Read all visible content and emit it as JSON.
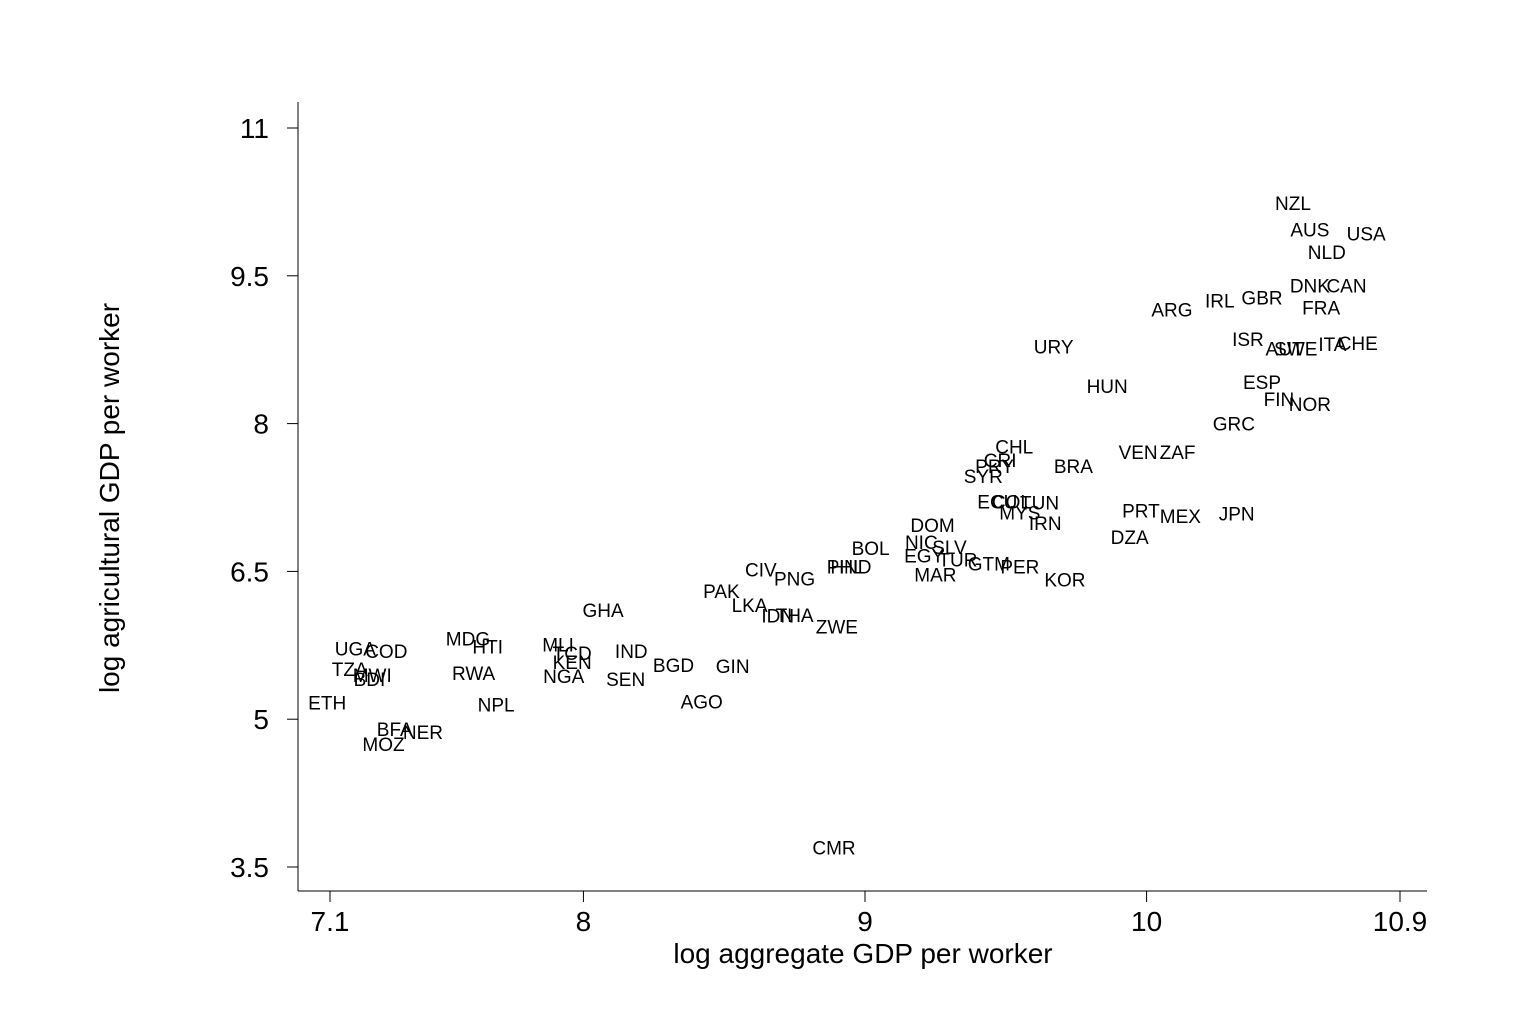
{
  "chart_data": {
    "type": "scatter",
    "title": "",
    "xlabel": "log aggregate GDP per worker",
    "ylabel": "log agricultural GDP per worker",
    "xlim": [
      6.99,
      11.09
    ],
    "ylim": [
      3.25,
      11.25
    ],
    "xticks": [
      7.1,
      8,
      9,
      10,
      10.9
    ],
    "xtick_labels": [
      "7.1",
      "8",
      "9",
      "10",
      "10.9"
    ],
    "yticks": [
      3.5,
      5,
      6.5,
      8,
      9.5,
      11
    ],
    "ytick_labels": [
      "3.5",
      "5",
      "6.5",
      "8",
      "9.5",
      "11"
    ],
    "grid": false,
    "points": [
      {
        "label": "NZL",
        "x": 10.52,
        "y": 10.24
      },
      {
        "label": "AUS",
        "x": 10.58,
        "y": 9.97
      },
      {
        "label": "USA",
        "x": 10.78,
        "y": 9.93
      },
      {
        "label": "NLD",
        "x": 10.64,
        "y": 9.74
      },
      {
        "label": "DNK",
        "x": 10.58,
        "y": 9.4
      },
      {
        "label": "CAN",
        "x": 10.71,
        "y": 9.4
      },
      {
        "label": "GBR",
        "x": 10.41,
        "y": 9.28
      },
      {
        "label": "IRL",
        "x": 10.26,
        "y": 9.25
      },
      {
        "label": "FRA",
        "x": 10.62,
        "y": 9.18
      },
      {
        "label": "ARG",
        "x": 10.09,
        "y": 9.16
      },
      {
        "label": "ISR",
        "x": 10.36,
        "y": 8.86
      },
      {
        "label": "AUT",
        "x": 10.49,
        "y": 8.76
      },
      {
        "label": "SWE",
        "x": 10.53,
        "y": 8.76
      },
      {
        "label": "ITA",
        "x": 10.66,
        "y": 8.81
      },
      {
        "label": "CHE",
        "x": 10.75,
        "y": 8.82
      },
      {
        "label": "URY",
        "x": 9.67,
        "y": 8.78
      },
      {
        "label": "HUN",
        "x": 9.86,
        "y": 8.38
      },
      {
        "label": "ESP",
        "x": 10.41,
        "y": 8.42
      },
      {
        "label": "FIN",
        "x": 10.47,
        "y": 8.25
      },
      {
        "label": "NOR",
        "x": 10.58,
        "y": 8.2
      },
      {
        "label": "GRC",
        "x": 10.31,
        "y": 8
      },
      {
        "label": "CHL",
        "x": 9.53,
        "y": 7.77
      },
      {
        "label": "VEN",
        "x": 9.97,
        "y": 7.71
      },
      {
        "label": "ZAF",
        "x": 10.11,
        "y": 7.71
      },
      {
        "label": "CRI",
        "x": 9.48,
        "y": 7.63
      },
      {
        "label": "PRY",
        "x": 9.46,
        "y": 7.57
      },
      {
        "label": "BRA",
        "x": 9.74,
        "y": 7.57
      },
      {
        "label": "SYR",
        "x": 9.42,
        "y": 7.47
      },
      {
        "label": "ECU",
        "x": 9.47,
        "y": 7.21
      },
      {
        "label": "COL",
        "x": 9.52,
        "y": 7.21
      },
      {
        "label": "TUN",
        "x": 9.62,
        "y": 7.2
      },
      {
        "label": "MYS",
        "x": 9.55,
        "y": 7.1
      },
      {
        "label": "IRN",
        "x": 9.64,
        "y": 6.99
      },
      {
        "label": "PRT",
        "x": 9.98,
        "y": 7.12
      },
      {
        "label": "MEX",
        "x": 10.12,
        "y": 7.06
      },
      {
        "label": "JPN",
        "x": 10.32,
        "y": 7.09
      },
      {
        "label": "DOM",
        "x": 9.24,
        "y": 6.97
      },
      {
        "label": "DZA",
        "x": 9.94,
        "y": 6.85
      },
      {
        "label": "NIC",
        "x": 9.2,
        "y": 6.8
      },
      {
        "label": "SLV",
        "x": 9.3,
        "y": 6.75
      },
      {
        "label": "BOL",
        "x": 9.02,
        "y": 6.74
      },
      {
        "label": "EGY",
        "x": 9.21,
        "y": 6.66
      },
      {
        "label": "TUR",
        "x": 9.33,
        "y": 6.62
      },
      {
        "label": "GTM",
        "x": 9.44,
        "y": 6.58
      },
      {
        "label": "PER",
        "x": 9.55,
        "y": 6.55
      },
      {
        "label": "HND",
        "x": 8.95,
        "y": 6.55
      },
      {
        "label": "PHL",
        "x": 8.93,
        "y": 6.55
      },
      {
        "label": "MAR",
        "x": 9.25,
        "y": 6.47
      },
      {
        "label": "KOR",
        "x": 9.71,
        "y": 6.42
      },
      {
        "label": "CIV",
        "x": 8.63,
        "y": 6.52
      },
      {
        "label": "PNG",
        "x": 8.75,
        "y": 6.43
      },
      {
        "label": "PAK",
        "x": 8.49,
        "y": 6.3
      },
      {
        "label": "LKA",
        "x": 8.59,
        "y": 6.16
      },
      {
        "label": "GHA",
        "x": 8.07,
        "y": 6.11
      },
      {
        "label": "IDN",
        "x": 8.69,
        "y": 6.05
      },
      {
        "label": "THA",
        "x": 8.75,
        "y": 6.06
      },
      {
        "label": "ZWE",
        "x": 8.9,
        "y": 5.94
      },
      {
        "label": "MDG",
        "x": 7.59,
        "y": 5.82
      },
      {
        "label": "HTI",
        "x": 7.66,
        "y": 5.74
      },
      {
        "label": "MLI",
        "x": 7.91,
        "y": 5.76
      },
      {
        "label": "TCD",
        "x": 7.96,
        "y": 5.67
      },
      {
        "label": "KEN",
        "x": 7.96,
        "y": 5.58
      },
      {
        "label": "IND",
        "x": 8.17,
        "y": 5.69
      },
      {
        "label": "UGA",
        "x": 7.19,
        "y": 5.72
      },
      {
        "label": "COD",
        "x": 7.3,
        "y": 5.69
      },
      {
        "label": "BGD",
        "x": 8.32,
        "y": 5.55
      },
      {
        "label": "GIN",
        "x": 8.53,
        "y": 5.54
      },
      {
        "label": "TZA",
        "x": 7.17,
        "y": 5.51
      },
      {
        "label": "MWI",
        "x": 7.25,
        "y": 5.45
      },
      {
        "label": "BDI",
        "x": 7.24,
        "y": 5.41
      },
      {
        "label": "RWA",
        "x": 7.61,
        "y": 5.47
      },
      {
        "label": "NGA",
        "x": 7.93,
        "y": 5.44
      },
      {
        "label": "SEN",
        "x": 8.15,
        "y": 5.41
      },
      {
        "label": "ETH",
        "x": 7.09,
        "y": 5.17
      },
      {
        "label": "NPL",
        "x": 7.69,
        "y": 5.15
      },
      {
        "label": "AGO",
        "x": 8.42,
        "y": 5.18
      },
      {
        "label": "BFA",
        "x": 7.33,
        "y": 4.9
      },
      {
        "label": "NER",
        "x": 7.43,
        "y": 4.87
      },
      {
        "label": "MOZ",
        "x": 7.29,
        "y": 4.75
      },
      {
        "label": "CMR",
        "x": 8.89,
        "y": 3.7
      }
    ]
  }
}
